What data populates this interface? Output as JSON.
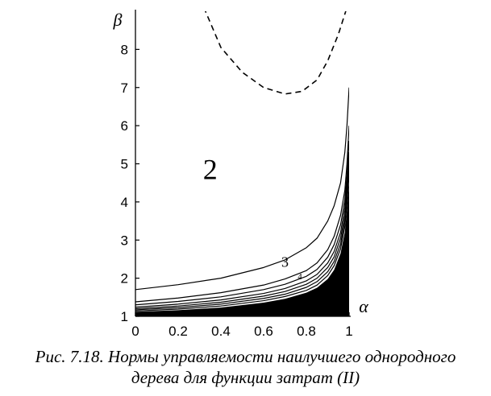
{
  "chart_data": {
    "type": "line",
    "xlabel": "α",
    "ylabel": "β",
    "xlim": [
      0,
      1
    ],
    "ylim": [
      1,
      9
    ],
    "x_ticks": [
      "0",
      "0.2",
      "0.4",
      "0.6",
      "0.8",
      "1"
    ],
    "y_ticks": [
      "1",
      "2",
      "3",
      "4",
      "5",
      "6",
      "7",
      "8"
    ],
    "regions": [
      {
        "label": "2",
        "x": 0.35,
        "y": 4.6
      }
    ],
    "annotations": [
      {
        "text": "3",
        "x": 0.7,
        "y": 2.3
      },
      {
        "text": "4",
        "x": 0.77,
        "y": 1.97
      }
    ],
    "filled_region": "black region below the lowest curve, near α = 1",
    "series": [
      {
        "style": "dashed",
        "x": [
          0.32,
          0.4,
          0.5,
          0.6,
          0.7,
          0.78,
          0.85,
          0.9,
          0.95,
          0.99
        ],
        "y": [
          9.1,
          8.05,
          7.4,
          7.0,
          6.83,
          6.9,
          7.2,
          7.7,
          8.4,
          9.1
        ]
      },
      {
        "style": "solid",
        "x": [
          0,
          0.2,
          0.4,
          0.6,
          0.7,
          0.8,
          0.85,
          0.9,
          0.93,
          0.96,
          0.98,
          0.99,
          1.0
        ],
        "y": [
          1.7,
          1.83,
          2.0,
          2.28,
          2.48,
          2.8,
          3.05,
          3.5,
          3.9,
          4.5,
          5.3,
          6.0,
          7.0
        ]
      },
      {
        "style": "solid",
        "x": [
          0,
          0.2,
          0.4,
          0.6,
          0.7,
          0.8,
          0.85,
          0.9,
          0.93,
          0.96,
          0.98,
          0.99,
          1.0
        ],
        "y": [
          1.38,
          1.48,
          1.62,
          1.82,
          1.98,
          2.2,
          2.4,
          2.75,
          3.1,
          3.65,
          4.3,
          5.0,
          6.0
        ]
      },
      {
        "style": "solid",
        "x": [
          0,
          0.2,
          0.4,
          0.6,
          0.7,
          0.8,
          0.85,
          0.9,
          0.93,
          0.96,
          0.98,
          0.99,
          1.0
        ],
        "y": [
          1.3,
          1.39,
          1.51,
          1.7,
          1.84,
          2.05,
          2.23,
          2.55,
          2.88,
          3.4,
          4.05,
          4.7,
          5.6
        ]
      },
      {
        "style": "solid",
        "x": [
          0,
          0.2,
          0.4,
          0.6,
          0.7,
          0.8,
          0.85,
          0.9,
          0.93,
          0.96,
          0.98,
          0.99,
          1.0
        ],
        "y": [
          1.24,
          1.32,
          1.43,
          1.6,
          1.73,
          1.93,
          2.1,
          2.4,
          2.7,
          3.2,
          3.85,
          4.5,
          5.3
        ]
      },
      {
        "style": "solid",
        "x": [
          0,
          0.2,
          0.4,
          0.6,
          0.7,
          0.8,
          0.85,
          0.9,
          0.93,
          0.96,
          0.98,
          0.99,
          1.0
        ],
        "y": [
          1.2,
          1.27,
          1.37,
          1.53,
          1.65,
          1.84,
          2.0,
          2.28,
          2.56,
          3.05,
          3.65,
          4.3,
          5.1
        ]
      },
      {
        "style": "solid",
        "x": [
          0,
          0.2,
          0.4,
          0.6,
          0.7,
          0.8,
          0.85,
          0.9,
          0.93,
          0.96,
          0.98,
          0.99,
          1.0
        ],
        "y": [
          1.17,
          1.23,
          1.32,
          1.47,
          1.58,
          1.76,
          1.91,
          2.17,
          2.44,
          2.9,
          3.5,
          4.1,
          4.9
        ]
      },
      {
        "style": "solid",
        "x": [
          0,
          0.2,
          0.4,
          0.6,
          0.7,
          0.8,
          0.85,
          0.9,
          0.93,
          0.96,
          0.98,
          0.99,
          1.0
        ],
        "y": [
          1.14,
          1.19,
          1.27,
          1.41,
          1.52,
          1.68,
          1.82,
          2.07,
          2.33,
          2.77,
          3.35,
          3.95,
          4.7
        ]
      }
    ],
    "filled_boundary": {
      "x": [
        0,
        0.2,
        0.4,
        0.6,
        0.7,
        0.8,
        0.85,
        0.9,
        0.93,
        0.96,
        0.98,
        0.99,
        1.0
      ],
      "y": [
        1.12,
        1.16,
        1.23,
        1.36,
        1.46,
        1.62,
        1.75,
        1.98,
        2.22,
        2.65,
        3.2,
        3.8,
        4.5
      ]
    }
  },
  "caption": {
    "line1": "Рис. 7.18. Нормы управляемости наилучшего однородного",
    "line2": "дерева для функции затрат (II)"
  }
}
